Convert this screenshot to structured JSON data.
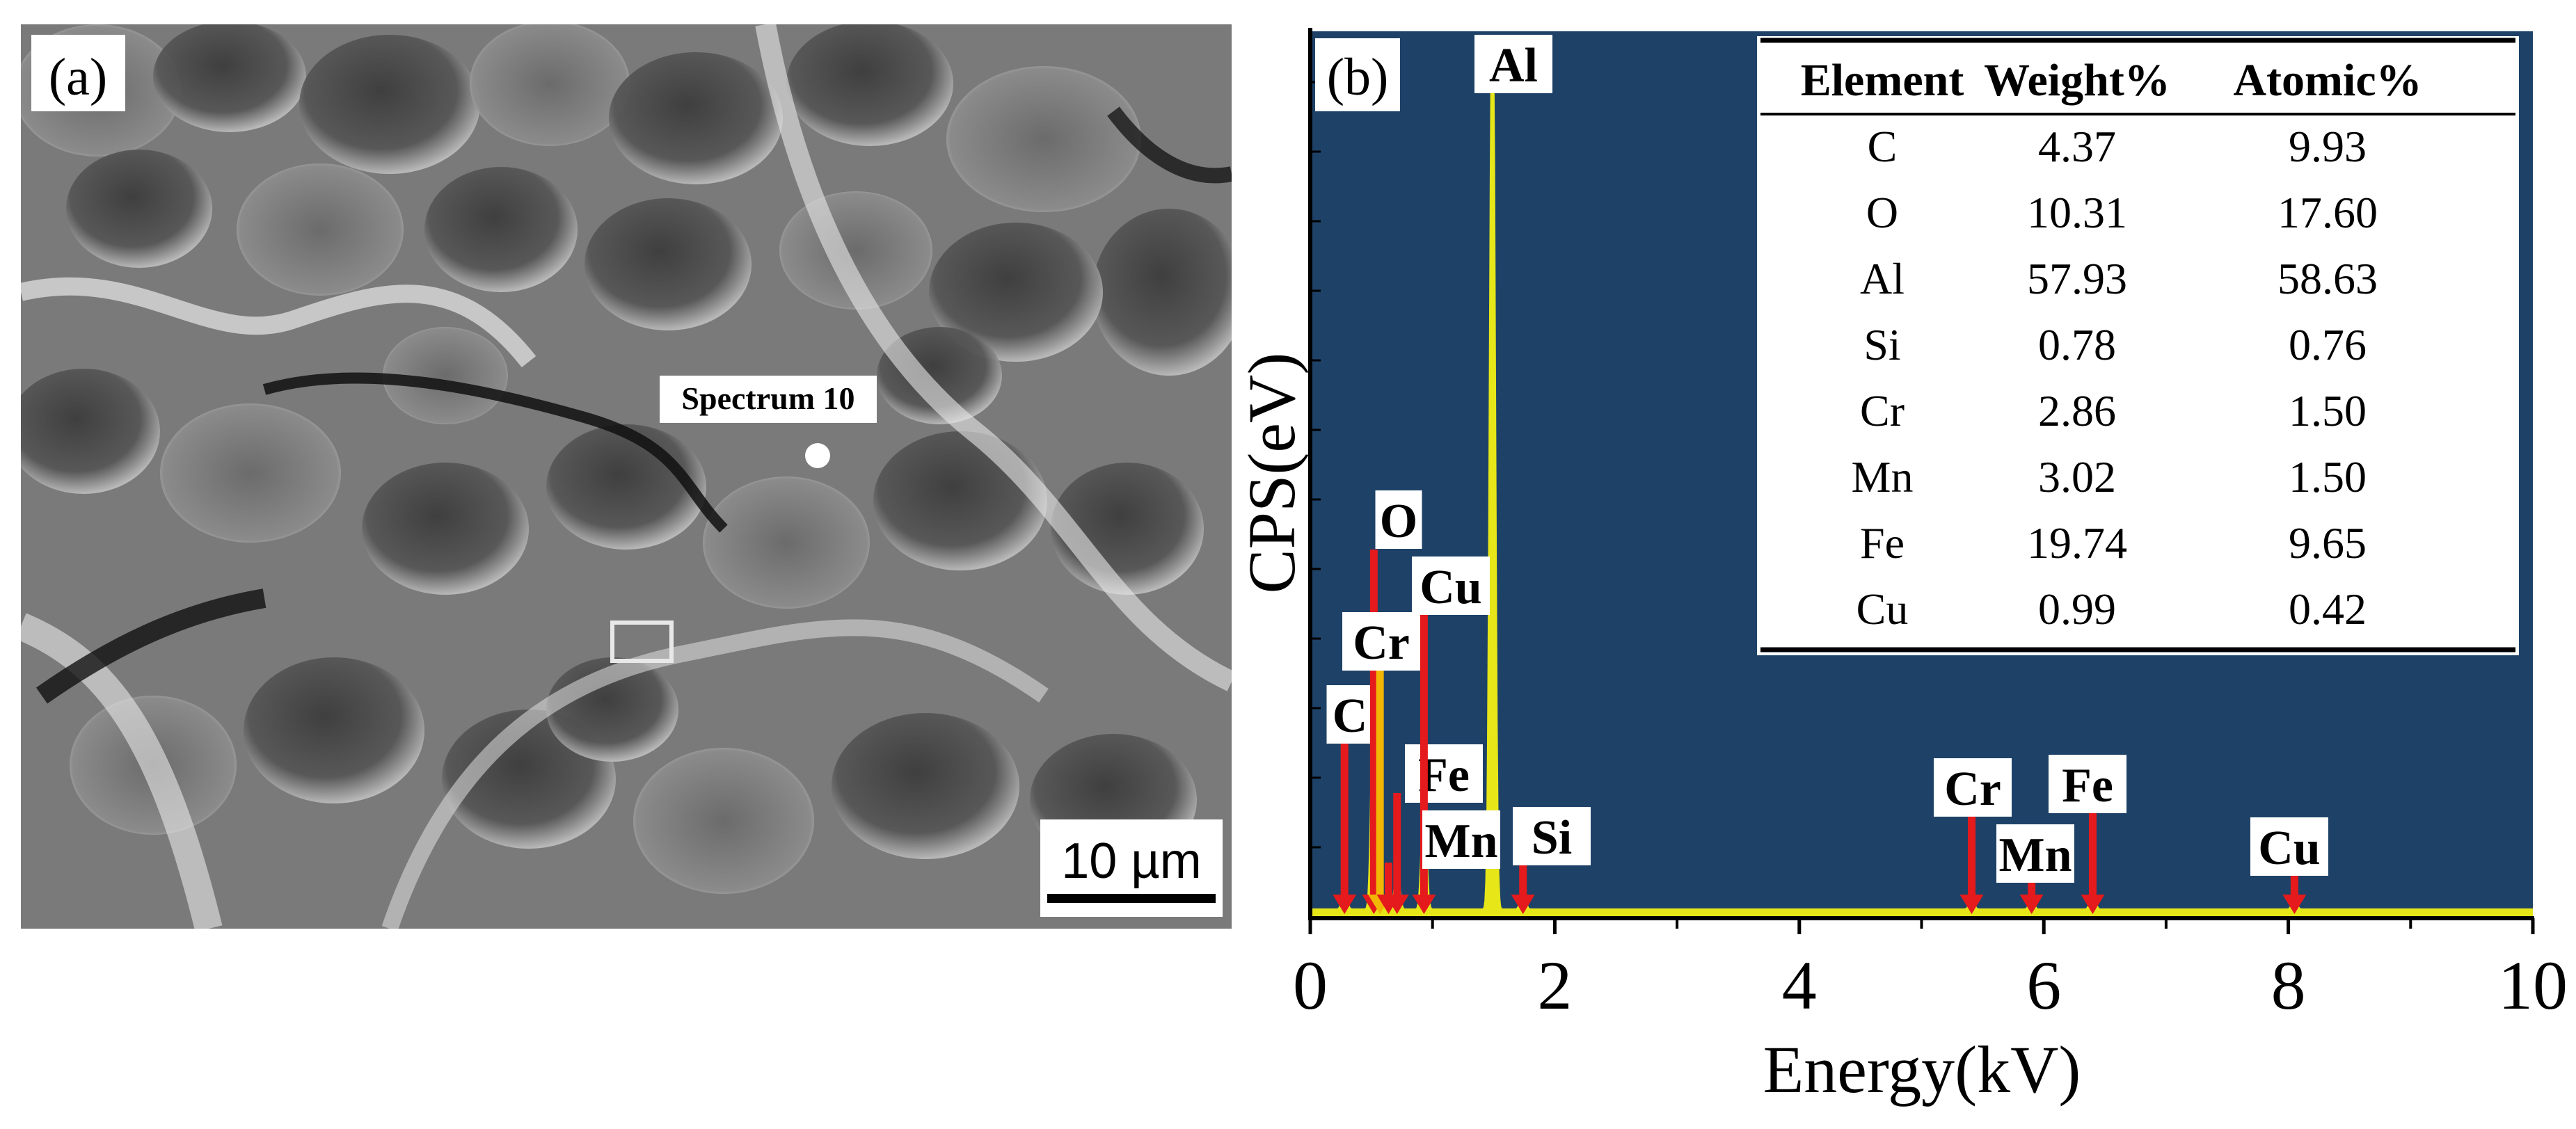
{
  "panel_a": {
    "label": "(a)",
    "spectrum_label": "Spectrum 10",
    "scale_bar_text": "10 µm"
  },
  "panel_b": {
    "label": "(b)"
  },
  "chart_data": {
    "type": "line",
    "xlabel": "Energy(kV)",
    "ylabel": "CPS(eV)",
    "xlim": [
      0,
      10
    ],
    "x_ticks": [
      "0",
      "2",
      "4",
      "6",
      "8",
      "10"
    ],
    "background_color": "#1e4267",
    "spectrum_color": "#e6e619",
    "arrow_color": "#e41a1c",
    "secondary_arrow_color": "#f2b705",
    "grid": false,
    "peaks": [
      {
        "label": "C",
        "energy": 0.28,
        "height": 0.02
      },
      {
        "label": "O",
        "energy": 0.52,
        "height": 0.23
      },
      {
        "label": "Cr",
        "energy": 0.57,
        "height": 0.03
      },
      {
        "label": "Fe",
        "energy": 0.71,
        "height": 0.04
      },
      {
        "label": "Cu",
        "energy": 0.93,
        "height": 0.11
      },
      {
        "label": "Mn",
        "energy": 0.64,
        "height": 0.02
      },
      {
        "label": "Al",
        "energy": 1.49,
        "height": 1.0
      },
      {
        "label": "Si",
        "energy": 1.74,
        "height": 0.02
      },
      {
        "label": "Cr",
        "energy": 5.41,
        "height": 0.01
      },
      {
        "label": "Mn",
        "energy": 5.9,
        "height": 0.01
      },
      {
        "label": "Fe",
        "energy": 6.4,
        "height": 0.02
      },
      {
        "label": "Cu",
        "energy": 8.05,
        "height": 0.01
      }
    ],
    "table": {
      "headers": [
        "Element",
        "Weight%",
        "Atomic%"
      ],
      "rows": [
        [
          "C",
          "4.37",
          "9.93"
        ],
        [
          "O",
          "10.31",
          "17.60"
        ],
        [
          "Al",
          "57.93",
          "58.63"
        ],
        [
          "Si",
          "0.78",
          "0.76"
        ],
        [
          "Cr",
          "2.86",
          "1.50"
        ],
        [
          "Mn",
          "3.02",
          "1.50"
        ],
        [
          "Fe",
          "19.74",
          "9.65"
        ],
        [
          "Cu",
          "0.99",
          "0.42"
        ]
      ]
    }
  }
}
